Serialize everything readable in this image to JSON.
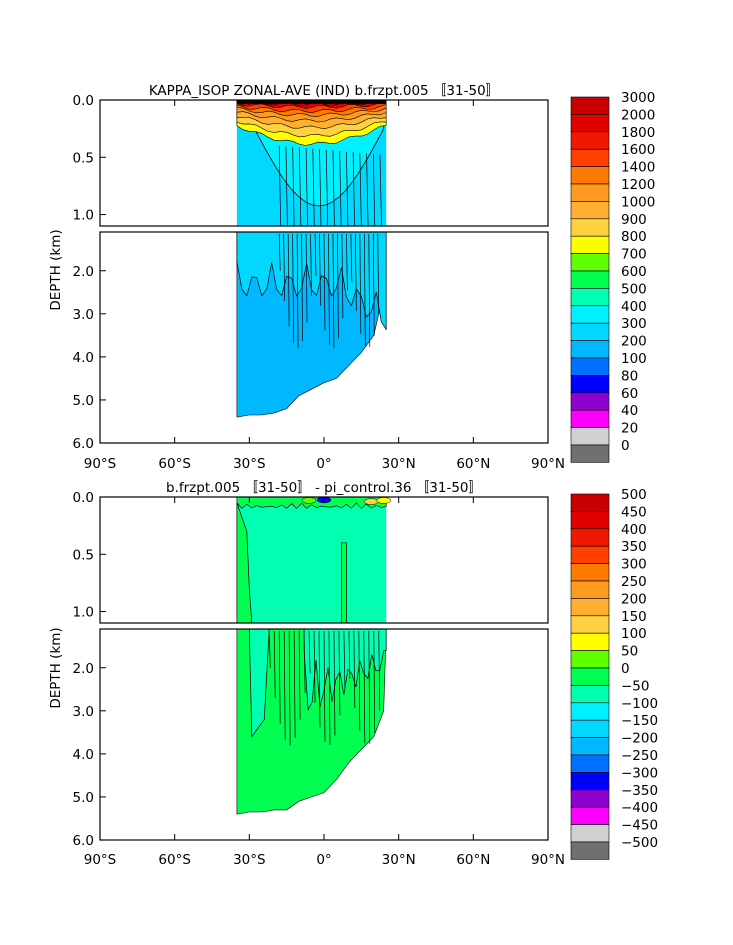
{
  "chart_data": [
    {
      "type": "heatmap",
      "title": "KAPPA_ISOP ZONAL-AVE (IND) b.frzpt.005 〚31-50〛",
      "ylabel": "DEPTH (km)",
      "xlabel": "",
      "x_ticks": [
        "90°S",
        "60°S",
        "30°S",
        "0°",
        "30°N",
        "60°N",
        "90°N"
      ],
      "y_ticks_upper": [
        "0.0",
        "0.5",
        "1.0"
      ],
      "y_ticks_lower": [
        "2.0",
        "3.0",
        "4.0",
        "5.0",
        "6.0"
      ],
      "xlim": [
        -90,
        90
      ],
      "ylim_upper": [
        0,
        1.1
      ],
      "ylim_lower": [
        1.1,
        6.0
      ],
      "colorbar": {
        "levels": [
          "3000",
          "2000",
          "1800",
          "1600",
          "1400",
          "1200",
          "1000",
          "900",
          "800",
          "700",
          "600",
          "500",
          "400",
          "300",
          "200",
          "100",
          "80",
          "60",
          "40",
          "20",
          "0"
        ],
        "colors": [
          "#c80000",
          "#e00000",
          "#f01800",
          "#ff4000",
          "#ff7a00",
          "#ff9a20",
          "#ffb030",
          "#ffd040",
          "#ffff00",
          "#60ff00",
          "#00ff50",
          "#00ffb0",
          "#00f0ff",
          "#00d8ff",
          "#00b8ff",
          "#0070ff",
          "#0000ff",
          "#9000d0",
          "#ff00ff",
          "#d0d0d0",
          "#707070"
        ]
      },
      "dominant_value_range": "300-400",
      "data_extent_lat": [
        -35,
        25
      ]
    },
    {
      "type": "heatmap",
      "title": "b.frzpt.005 〚31-50〛 - pi_control.36 〚31-50〛",
      "ylabel": "DEPTH (km)",
      "xlabel": "",
      "x_ticks": [
        "90°S",
        "60°S",
        "30°S",
        "0°",
        "30°N",
        "60°N",
        "90°N"
      ],
      "y_ticks_upper": [
        "0.0",
        "0.5",
        "1.0"
      ],
      "y_ticks_lower": [
        "2.0",
        "3.0",
        "4.0",
        "5.0",
        "6.0"
      ],
      "xlim": [
        -90,
        90
      ],
      "ylim_upper": [
        0,
        1.1
      ],
      "ylim_lower": [
        1.1,
        6.0
      ],
      "colorbar": {
        "levels": [
          "500",
          "450",
          "400",
          "350",
          "300",
          "250",
          "200",
          "150",
          "100",
          "50",
          "0",
          "−50",
          "−100",
          "−150",
          "−200",
          "−250",
          "−300",
          "−350",
          "−400",
          "−450",
          "−500"
        ],
        "colors": [
          "#c80000",
          "#e00000",
          "#f01800",
          "#ff4000",
          "#ff7a00",
          "#ff9a20",
          "#ffb030",
          "#ffd040",
          "#ffff00",
          "#60ff00",
          "#00ff50",
          "#00ffb0",
          "#00f0ff",
          "#00d8ff",
          "#00b8ff",
          "#0070ff",
          "#0000ff",
          "#9000d0",
          "#ff00ff",
          "#d0d0d0",
          "#707070"
        ]
      },
      "dominant_value_range": "-50-0 and 0-50",
      "data_extent_lat": [
        -35,
        25
      ]
    }
  ]
}
